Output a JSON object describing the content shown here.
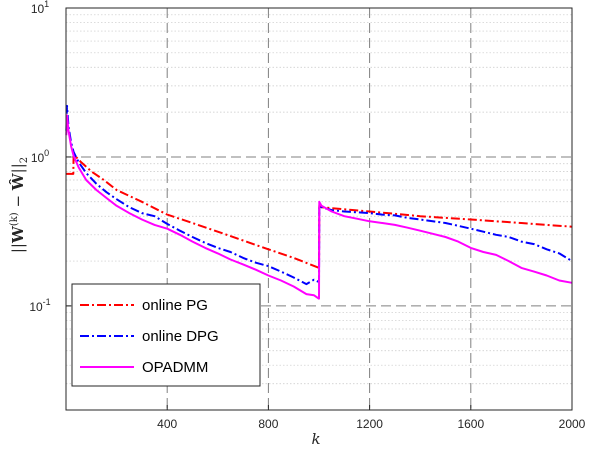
{
  "chart_data": {
    "type": "line",
    "title": "",
    "xlabel": "k",
    "ylabel": "||W^(k) − Ŵ||₂",
    "ylabel_parts": {
      "open": "||",
      "bold": "W",
      "sup": "(k)",
      "minus": " − ",
      "hat": "Ŵ",
      "close": "||",
      "sub": "2"
    },
    "xlim": [
      0,
      2000
    ],
    "ylim": [
      0.02,
      10
    ],
    "yscale": "log",
    "grid": true,
    "xticks": [
      400,
      800,
      1200,
      1600,
      2000
    ],
    "xtick_labels": [
      "400",
      "800",
      "1200",
      "1600",
      "2000"
    ],
    "yticks": [
      {
        "value": 0.1,
        "base": "10",
        "exp": "-1"
      },
      {
        "value": 1,
        "base": "10",
        "exp": "0"
      },
      {
        "value": 10,
        "base": "10",
        "exp": "1"
      }
    ],
    "legend_position": "bottom-left",
    "series": [
      {
        "name": "online PG",
        "color": "#ff0000",
        "style": "dashdot",
        "x": [
          1,
          29,
          30,
          32,
          35,
          45,
          60,
          80,
          100,
          150,
          200,
          300,
          400,
          500,
          600,
          700,
          800,
          900,
          1000,
          1001,
          1010,
          1100,
          1200,
          1300,
          1400,
          1500,
          1600,
          1700,
          1800,
          1900,
          2000
        ],
        "y": [
          0.77,
          0.77,
          1.02,
          1.03,
          1.02,
          0.98,
          0.92,
          0.86,
          0.8,
          0.7,
          0.6,
          0.5,
          0.41,
          0.36,
          0.315,
          0.275,
          0.24,
          0.21,
          0.18,
          0.47,
          0.46,
          0.445,
          0.43,
          0.415,
          0.4,
          0.39,
          0.38,
          0.37,
          0.36,
          0.35,
          0.34
        ]
      },
      {
        "name": "online DPG",
        "color": "#0000ff",
        "style": "dashdot",
        "x": [
          1,
          4,
          10,
          20,
          30,
          50,
          80,
          120,
          160,
          200,
          250,
          300,
          350,
          400,
          450,
          500,
          550,
          600,
          650,
          700,
          750,
          800,
          850,
          900,
          950,
          980,
          999,
          1000,
          1001,
          1010,
          1050,
          1100,
          1150,
          1200,
          1250,
          1300,
          1350,
          1400,
          1450,
          1500,
          1550,
          1600,
          1650,
          1700,
          1750,
          1800,
          1850,
          1900,
          1950,
          2000
        ],
        "y": [
          1.5,
          2.2,
          1.6,
          1.25,
          1.08,
          0.92,
          0.78,
          0.66,
          0.58,
          0.52,
          0.46,
          0.42,
          0.4,
          0.355,
          0.32,
          0.29,
          0.265,
          0.245,
          0.23,
          0.21,
          0.195,
          0.185,
          0.17,
          0.155,
          0.14,
          0.15,
          0.145,
          0.145,
          0.47,
          0.46,
          0.44,
          0.43,
          0.425,
          0.42,
          0.41,
          0.405,
          0.39,
          0.38,
          0.37,
          0.36,
          0.345,
          0.33,
          0.315,
          0.3,
          0.29,
          0.27,
          0.26,
          0.24,
          0.225,
          0.2
        ]
      },
      {
        "name": "OPADMM",
        "color": "#ff00ff",
        "style": "solid",
        "x": [
          1,
          4,
          10,
          20,
          30,
          50,
          80,
          120,
          160,
          200,
          250,
          300,
          350,
          400,
          450,
          500,
          550,
          600,
          650,
          700,
          750,
          800,
          850,
          900,
          950,
          980,
          999,
          1000,
          1001,
          1010,
          1050,
          1100,
          1150,
          1200,
          1250,
          1300,
          1350,
          1400,
          1450,
          1500,
          1550,
          1600,
          1650,
          1700,
          1750,
          1800,
          1850,
          1900,
          1950,
          2000
        ],
        "y": [
          1.4,
          1.9,
          1.5,
          1.18,
          1.02,
          0.85,
          0.7,
          0.6,
          0.53,
          0.47,
          0.42,
          0.38,
          0.35,
          0.33,
          0.3,
          0.27,
          0.245,
          0.225,
          0.205,
          0.19,
          0.175,
          0.16,
          0.148,
          0.135,
          0.12,
          0.118,
          0.112,
          0.112,
          0.5,
          0.47,
          0.43,
          0.4,
          0.385,
          0.37,
          0.36,
          0.35,
          0.335,
          0.32,
          0.305,
          0.29,
          0.27,
          0.245,
          0.23,
          0.22,
          0.2,
          0.18,
          0.17,
          0.16,
          0.148,
          0.143
        ]
      }
    ]
  }
}
